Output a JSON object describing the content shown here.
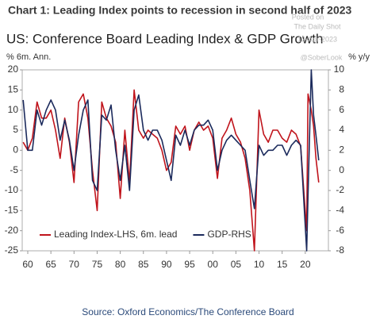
{
  "chart_data": {
    "type": "line",
    "header": "Chart 1: Leading Index points to recession in second half of 2023",
    "title": "US: Conference Board Leading Index & GDP Growth",
    "ylabel": "% 6m. Ann.",
    "y2label": "% y/y",
    "source": "Source: Oxford Economics/The Conference Board",
    "watermark": [
      "Posted on",
      "The Daily Shot",
      "13-Apr-2023",
      "@SoberLook"
    ],
    "x": [
      1959,
      1960,
      1961,
      1962,
      1963,
      1964,
      1965,
      1966,
      1967,
      1968,
      1969,
      1970,
      1971,
      1972,
      1973,
      1974,
      1975,
      1976,
      1977,
      1978,
      1979,
      1980,
      1981,
      1982,
      1983,
      1984,
      1985,
      1986,
      1987,
      1988,
      1989,
      1990,
      1991,
      1992,
      1993,
      1994,
      1995,
      1996,
      1997,
      1998,
      1999,
      2000,
      2001,
      2002,
      2003,
      2004,
      2005,
      2006,
      2007,
      2008,
      2009,
      2010,
      2011,
      2012,
      2013,
      2014,
      2015,
      2016,
      2017,
      2018,
      2019,
      2020.3,
      2020.6,
      2021.3,
      2021.8,
      2022.3,
      2022.9
    ],
    "series": [
      {
        "name": "Leading Index-LHS, 6m. lead",
        "color": "#c0141c",
        "values": [
          2,
          0,
          3,
          12,
          8,
          8,
          10,
          5,
          -2,
          8,
          2,
          -8,
          12,
          14,
          8,
          -5,
          -15,
          12,
          8,
          6,
          2,
          -12,
          5,
          -8,
          15,
          5,
          3,
          5,
          4,
          3,
          0,
          -5,
          -3,
          6,
          4,
          6,
          0,
          5,
          7,
          5,
          6,
          3,
          -7,
          3,
          5,
          8,
          4,
          2,
          -2,
          -10,
          -25,
          10,
          4,
          2,
          5,
          5,
          3,
          2,
          5,
          4,
          1,
          -20,
          14,
          10,
          6,
          -2,
          -8
        ]
      },
      {
        "name": "GDP-RHS",
        "color": "#1b2a5c",
        "axis": "y2",
        "values": [
          7,
          2,
          2,
          6,
          4.5,
          6,
          7,
          6,
          3,
          5,
          3,
          0,
          3.5,
          6,
          7,
          -1,
          -2,
          5.5,
          5,
          6.5,
          2,
          -1,
          2.5,
          -2,
          6,
          7.5,
          4,
          3,
          4,
          4,
          3,
          1,
          -1,
          3.5,
          2.5,
          4,
          2.5,
          4,
          4.5,
          4.5,
          5,
          4,
          0,
          2,
          3,
          3.5,
          3,
          2.5,
          2,
          -1,
          -3.8,
          2.5,
          1.5,
          2,
          2,
          2.5,
          2.5,
          1.5,
          2.5,
          3,
          2.5,
          -8,
          -2.5,
          10,
          5.5,
          3.5,
          1
        ]
      }
    ],
    "xlim": [
      1958.8,
      2025
    ],
    "xticks": [
      {
        "value": 1960,
        "label": "60"
      },
      {
        "value": 1965,
        "label": "65"
      },
      {
        "value": 1970,
        "label": "70"
      },
      {
        "value": 1975,
        "label": "75"
      },
      {
        "value": 1980,
        "label": "80"
      },
      {
        "value": 1985,
        "label": "85"
      },
      {
        "value": 1990,
        "label": "90"
      },
      {
        "value": 1995,
        "label": "95"
      },
      {
        "value": 2000,
        "label": "00"
      },
      {
        "value": 2005,
        "label": "05"
      },
      {
        "value": 2010,
        "label": "10"
      },
      {
        "value": 2015,
        "label": "15"
      },
      {
        "value": 2020,
        "label": "20"
      }
    ],
    "ylim": [
      -25,
      20
    ],
    "yticks": [
      -25,
      -20,
      -15,
      -10,
      -5,
      0,
      5,
      10,
      15,
      20
    ],
    "y2lim": [
      -8,
      10
    ],
    "y2ticks": [
      -8,
      -6,
      -4,
      -2,
      0,
      2,
      4,
      6,
      8,
      10
    ],
    "legend": "lower-left"
  }
}
